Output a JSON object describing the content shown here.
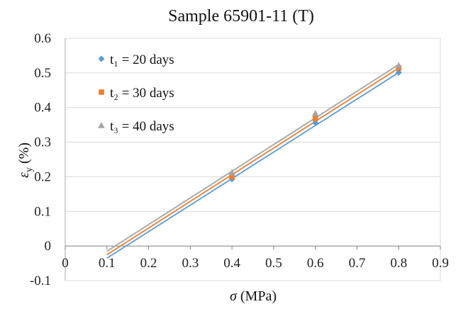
{
  "chart_data": {
    "type": "scatter",
    "title": "Sample 65901-11 (T)",
    "xlabel_symbol": "σ",
    "xlabel_unit": " (MPa)",
    "ylabel_symbol": "ε",
    "ylabel_sub": "y",
    "ylabel_unit": " (%)",
    "xlim": [
      0,
      0.9
    ],
    "ylim": [
      -0.1,
      0.6
    ],
    "x_ticks": [
      "0",
      "0.1",
      "0.2",
      "0.3",
      "0.4",
      "0.5",
      "0.6",
      "0.7",
      "0.8",
      "0.9"
    ],
    "y_ticks": [
      "-0.1",
      "0",
      "0.1",
      "0.2",
      "0.3",
      "0.4",
      "0.5",
      "0.6"
    ],
    "grid": "horizontal",
    "legend_position": "top-left",
    "series": [
      {
        "name": "t₁ = 20 days",
        "color": "#5B9BD5",
        "marker": "diamond",
        "points": [
          [
            0.4,
            0.193
          ],
          [
            0.6,
            0.356
          ],
          [
            0.8,
            0.501
          ]
        ],
        "trendline": [
          [
            0.1,
            -0.035
          ],
          [
            0.8,
            0.501
          ]
        ]
      },
      {
        "name": "t₂ = 30 days",
        "color": "#ED7D31",
        "marker": "square",
        "points": [
          [
            0.4,
            0.2
          ],
          [
            0.6,
            0.368
          ],
          [
            0.8,
            0.514
          ]
        ],
        "trendline": [
          [
            0.1,
            -0.025
          ],
          [
            0.8,
            0.514
          ]
        ]
      },
      {
        "name": "t₃ = 40 days",
        "color": "#A5A5A5",
        "marker": "triangle",
        "points": [
          [
            0.4,
            0.212
          ],
          [
            0.6,
            0.383
          ],
          [
            0.8,
            0.521
          ]
        ],
        "trendline": [
          [
            0.1,
            -0.015
          ],
          [
            0.8,
            0.524
          ]
        ]
      }
    ]
  }
}
